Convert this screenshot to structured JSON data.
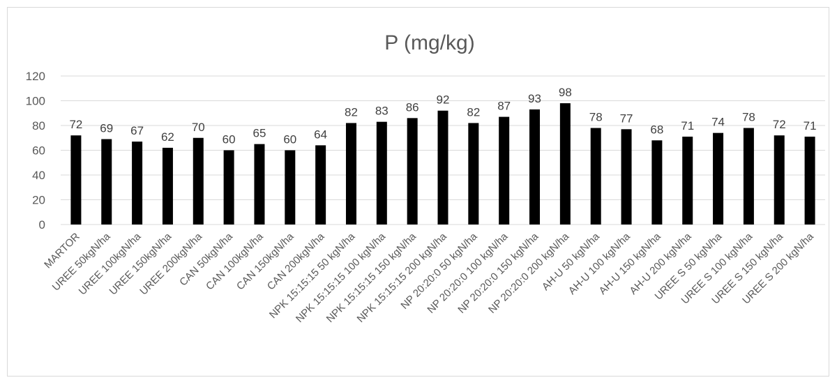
{
  "chart_data": {
    "type": "bar",
    "title": "P (mg/kg)",
    "xlabel": "",
    "ylabel": "",
    "ylim": [
      0,
      120
    ],
    "yticks": [
      0,
      20,
      40,
      60,
      80,
      100,
      120
    ],
    "grid": true,
    "legend": false,
    "bar_color": "#000000",
    "grid_color": "#d9d9d9",
    "categories": [
      "MARTOR",
      "UREE 50kgN/ha",
      "UREE 100kgN/ha",
      "UREE 150kgN/ha",
      "UREE 200kgN/ha",
      "CAN 50kgN/ha",
      "CAN 100kgN/ha",
      "CAN 150kgN/ha",
      "CAN 200kgN/ha",
      "NPK 15:15:15 50 kgN/ha",
      "NPK 15:15:15 100 kgN/ha",
      "NPK 15:15:15 150 kgN/ha",
      "NPK 15:15:15 200 kgN/ha",
      "NP 20:20:0 50 kgN/ha",
      "NP 20:20:0 100 kgN/ha",
      "NP 20:20:0 150 kgN/ha",
      "NP 20:20:0 200 kgN/ha",
      "AH-U 50 kgN/ha",
      "AH-U 100 kgN/ha",
      "AH-U 150 kgN/ha",
      "AH-U 200 kgN/ha",
      "UREE S 50 kgN/ha",
      "UREE S 100 kgN/ha",
      "UREE S 150 kgN/ha",
      "UREE S 200 kgN/ha"
    ],
    "values": [
      72,
      69,
      67,
      62,
      70,
      60,
      65,
      60,
      64,
      82,
      83,
      86,
      92,
      82,
      87,
      93,
      98,
      78,
      77,
      68,
      71,
      74,
      78,
      72,
      71
    ]
  }
}
